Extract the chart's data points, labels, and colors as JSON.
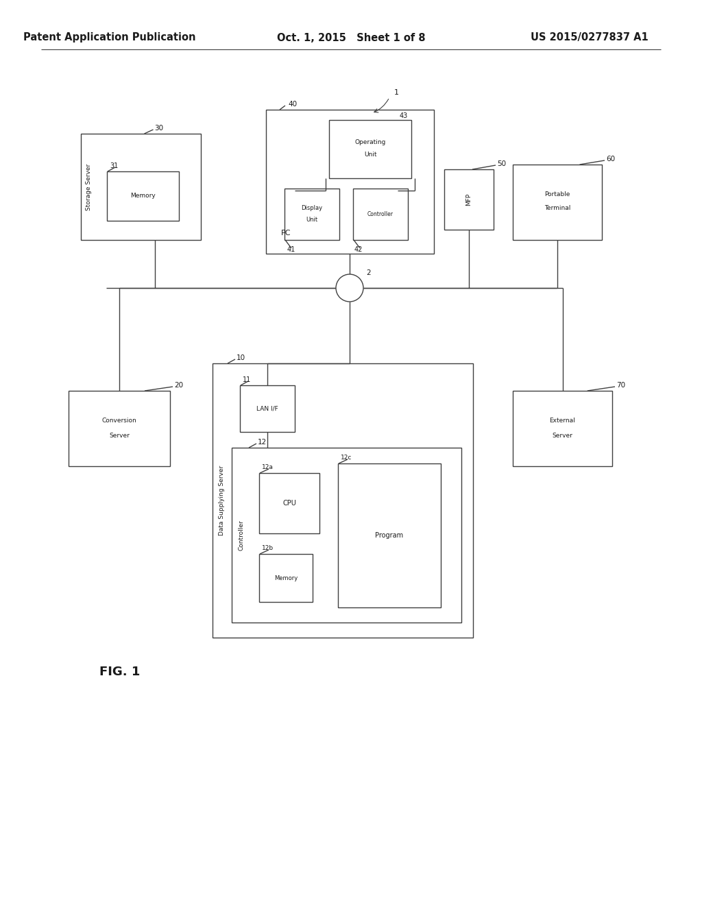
{
  "title_left": "Patent Application Publication",
  "title_mid": "Oct. 1, 2015   Sheet 1 of 8",
  "title_right": "US 2015/0277837 A1",
  "fig_label": "FIG. 1",
  "bg_color": "#ffffff",
  "line_color": "#404040",
  "text_color": "#1a1a1a",
  "header_fontsize": 10.5,
  "label_fontsize": 8.5,
  "small_fontsize": 7.5,
  "tiny_fontsize": 6.5
}
